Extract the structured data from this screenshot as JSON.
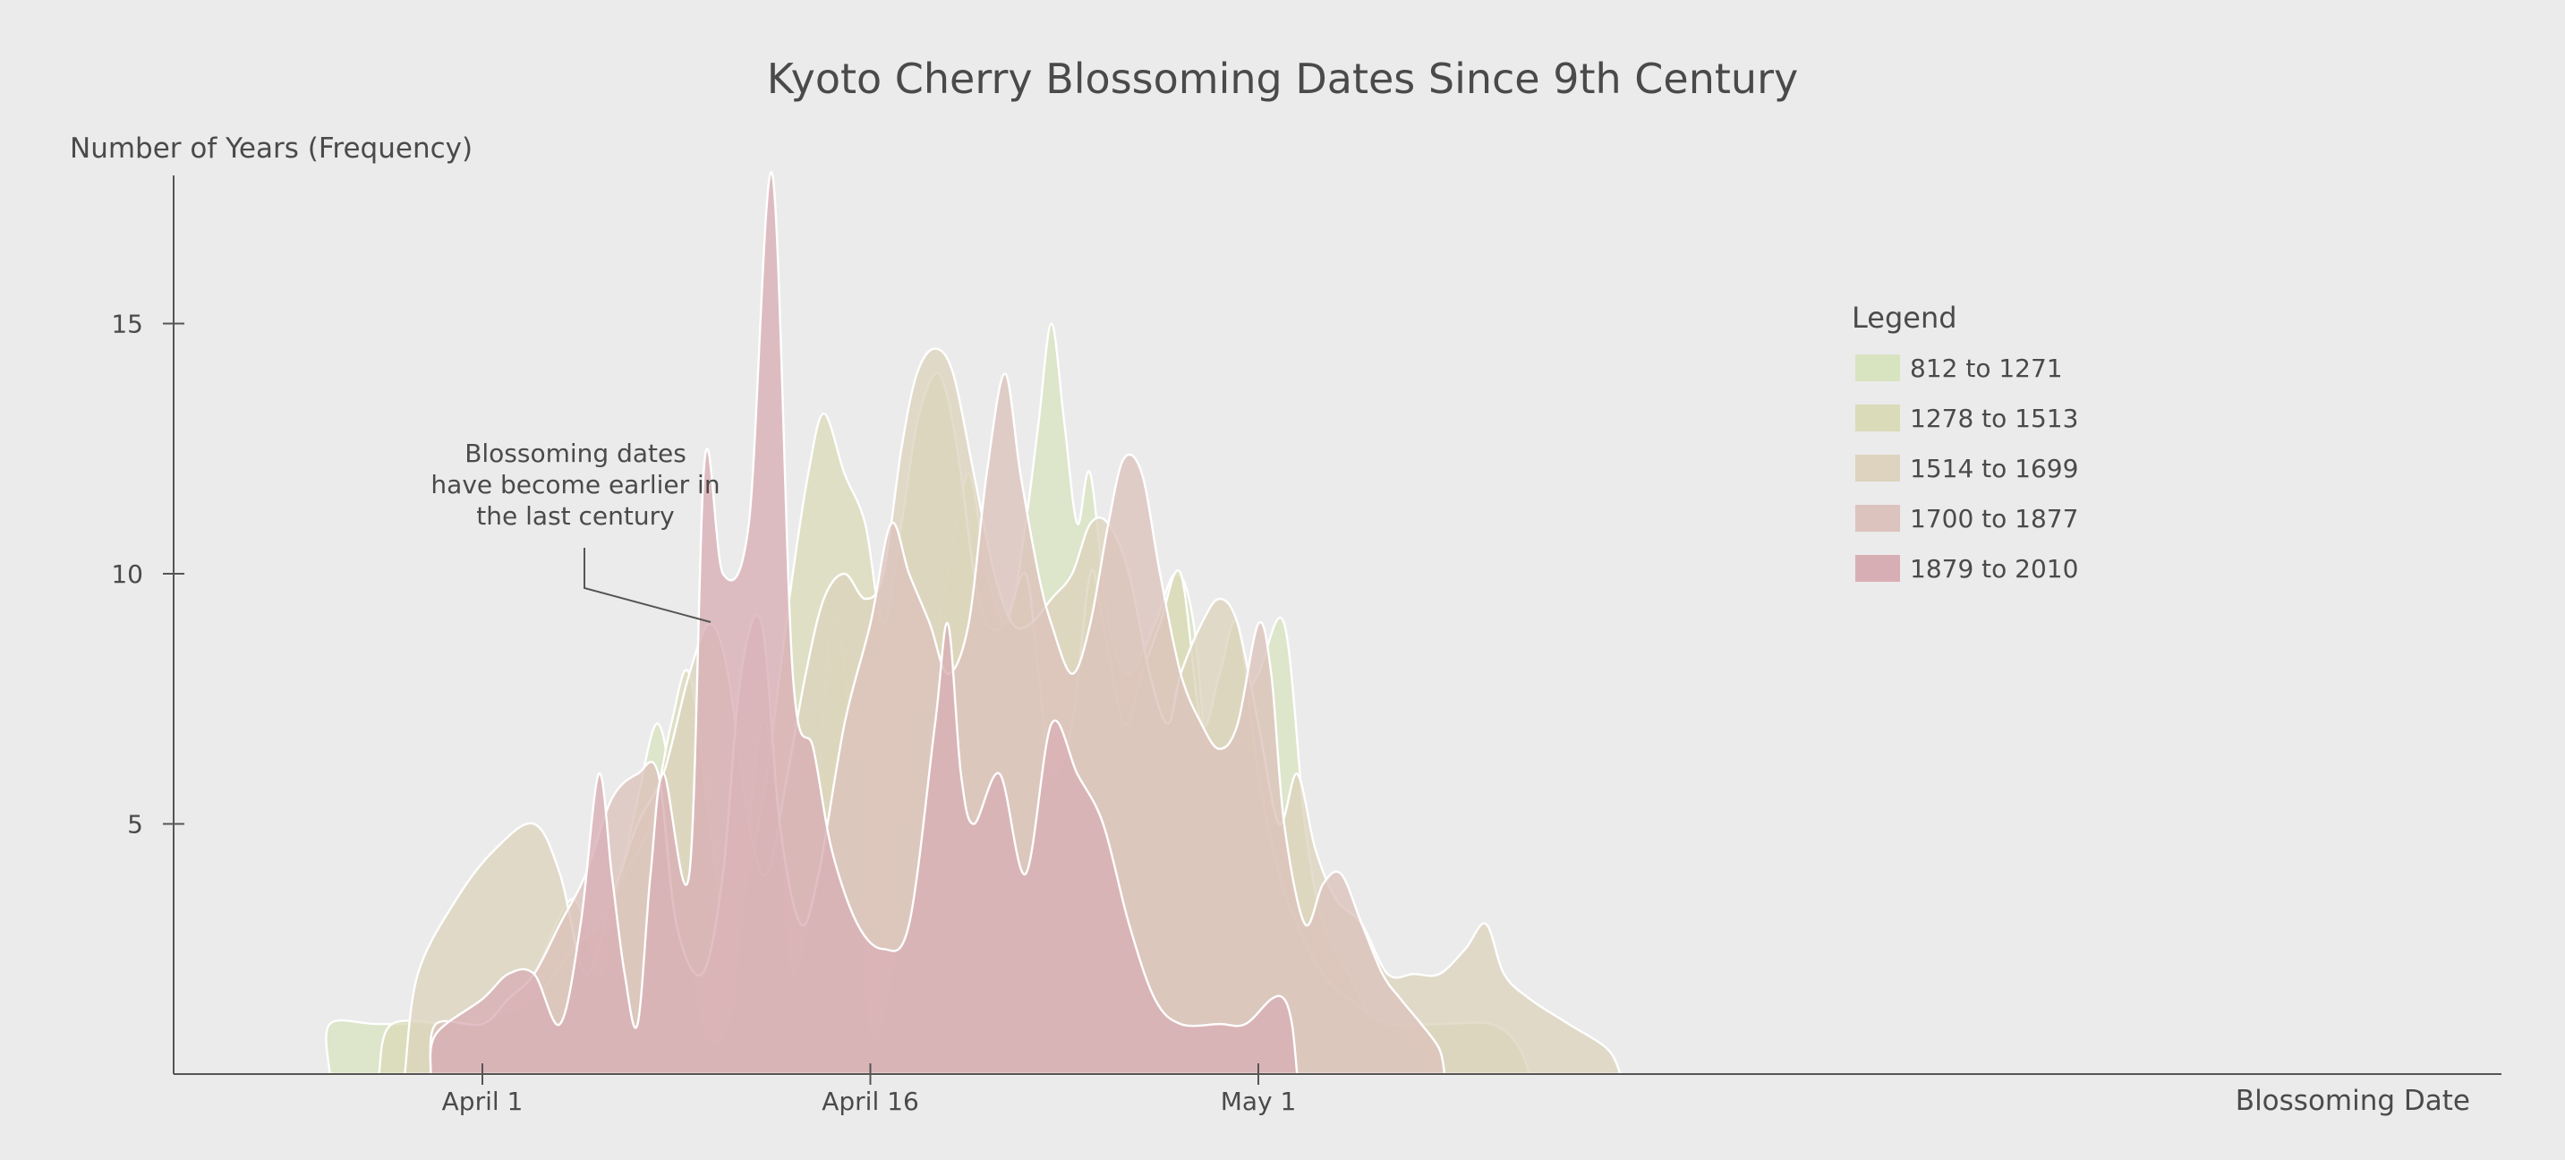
{
  "chart_data": {
    "type": "area",
    "title": "Kyoto Cherry Blossoming Dates Since 9th Century",
    "ylabel": "Number of Years (Frequency)",
    "xlabel": "Blossoming Date",
    "x_unit": "day of April (May 1 = 31)",
    "xlim": [
      -5,
      40
    ],
    "ylim": [
      0,
      18
    ],
    "x_ticks": [
      {
        "value": 1,
        "label": "April 1"
      },
      {
        "value": 16,
        "label": "April 16"
      },
      {
        "value": 31,
        "label": "May 1"
      }
    ],
    "y_ticks": [
      {
        "value": 5,
        "label": "5"
      },
      {
        "value": 10,
        "label": "10"
      },
      {
        "value": 15,
        "label": "15"
      }
    ],
    "legend": {
      "title": "Legend",
      "placement": "top-right"
    },
    "annotation": {
      "lines": [
        "Blossoming dates",
        "have become earlier in",
        "the last century"
      ]
    },
    "series": [
      {
        "name": "812 to 1271",
        "color": "#d8e3c0",
        "points": [
          [
            -4.9,
            0
          ],
          [
            -4.9,
            1
          ],
          [
            -3,
            1
          ],
          [
            0,
            1
          ],
          [
            1,
            1
          ],
          [
            2,
            1.3
          ],
          [
            3,
            2
          ],
          [
            4.5,
            3.5
          ],
          [
            5.5,
            2
          ],
          [
            6,
            3
          ],
          [
            7,
            5.5
          ],
          [
            7.8,
            7
          ],
          [
            8.5,
            5
          ],
          [
            9.5,
            1
          ],
          [
            10.5,
            1
          ],
          [
            11,
            3
          ],
          [
            11.8,
            7
          ],
          [
            12.5,
            5
          ],
          [
            13,
            2
          ],
          [
            13.8,
            4
          ],
          [
            14.5,
            9
          ],
          [
            15.2,
            7
          ],
          [
            16,
            1
          ],
          [
            16.8,
            2
          ],
          [
            17.5,
            5
          ],
          [
            18.3,
            8
          ],
          [
            19,
            10
          ],
          [
            19.8,
            12
          ],
          [
            20.5,
            10
          ],
          [
            21.3,
            9
          ],
          [
            22,
            11
          ],
          [
            22.5,
            13
          ],
          [
            23,
            15
          ],
          [
            23.5,
            13
          ],
          [
            24,
            11
          ],
          [
            24.5,
            12
          ],
          [
            25.2,
            9
          ],
          [
            26,
            8
          ],
          [
            27,
            9
          ],
          [
            27.8,
            10
          ],
          [
            28.5,
            9
          ],
          [
            29.3,
            5
          ],
          [
            30,
            7
          ],
          [
            31,
            8
          ],
          [
            32,
            9
          ],
          [
            32.8,
            5
          ],
          [
            33.5,
            3
          ],
          [
            34.5,
            2
          ],
          [
            35.5,
            1
          ],
          [
            36.5,
            1
          ],
          [
            37,
            0.5
          ],
          [
            37.5,
            0
          ]
        ]
      },
      {
        "name": "1278 to 1513",
        "color": "#dadbb8",
        "points": [
          [
            -3,
            0
          ],
          [
            -2.5,
            1
          ],
          [
            0,
            1
          ],
          [
            1.5,
            1.2
          ],
          [
            3,
            1.5
          ],
          [
            4.5,
            2.5
          ],
          [
            5.5,
            3
          ],
          [
            6.5,
            4
          ],
          [
            7.5,
            5
          ],
          [
            8.3,
            7
          ],
          [
            9,
            8
          ],
          [
            9.8,
            5
          ],
          [
            10.5,
            2.5
          ],
          [
            11.3,
            4
          ],
          [
            12,
            6
          ],
          [
            12.5,
            8
          ],
          [
            13,
            10
          ],
          [
            13.6,
            12
          ],
          [
            14.2,
            13.2
          ],
          [
            15,
            12
          ],
          [
            15.8,
            11
          ],
          [
            16.5,
            9
          ],
          [
            17.2,
            11
          ],
          [
            17.8,
            13
          ],
          [
            18.5,
            14
          ],
          [
            19,
            13.5
          ],
          [
            19.5,
            12
          ],
          [
            20,
            10
          ],
          [
            20.5,
            9
          ],
          [
            21.2,
            9
          ],
          [
            22,
            10
          ],
          [
            22.5,
            8
          ],
          [
            23,
            6
          ],
          [
            23.8,
            7
          ],
          [
            24.5,
            10
          ],
          [
            25,
            9
          ],
          [
            25.8,
            7
          ],
          [
            26.5,
            8
          ],
          [
            27.2,
            9
          ],
          [
            28,
            10
          ],
          [
            28.8,
            7
          ],
          [
            29.5,
            8
          ],
          [
            30.2,
            9
          ],
          [
            31,
            6
          ],
          [
            31.8,
            4
          ],
          [
            32.5,
            3
          ],
          [
            33.5,
            2
          ],
          [
            34.5,
            1.5
          ],
          [
            36,
            1
          ],
          [
            38,
            1
          ],
          [
            40,
            1
          ],
          [
            41,
            0.6
          ],
          [
            41.5,
            0
          ]
        ]
      },
      {
        "name": "1514 to 1699",
        "color": "#ddd3be",
        "points": [
          [
            -2,
            0
          ],
          [
            -1.5,
            2
          ],
          [
            0,
            3.5
          ],
          [
            1.5,
            4.5
          ],
          [
            3,
            5
          ],
          [
            4,
            4
          ],
          [
            5,
            2
          ],
          [
            6,
            3.5
          ],
          [
            7,
            5
          ],
          [
            8,
            6
          ],
          [
            9,
            8
          ],
          [
            9.8,
            9
          ],
          [
            10.5,
            8
          ],
          [
            11.3,
            5
          ],
          [
            12,
            4
          ],
          [
            12.8,
            6
          ],
          [
            13.5,
            8
          ],
          [
            14.2,
            9.5
          ],
          [
            15,
            10
          ],
          [
            15.8,
            9.5
          ],
          [
            16.5,
            10
          ],
          [
            17.2,
            12.5
          ],
          [
            17.8,
            14
          ],
          [
            18.5,
            14.5
          ],
          [
            19.2,
            14
          ],
          [
            20,
            12
          ],
          [
            20.8,
            10
          ],
          [
            21.5,
            9
          ],
          [
            22.2,
            9
          ],
          [
            23,
            9.5
          ],
          [
            23.8,
            10
          ],
          [
            24.5,
            11
          ],
          [
            25.2,
            11
          ],
          [
            26,
            10
          ],
          [
            26.8,
            8
          ],
          [
            27.5,
            7
          ],
          [
            28,
            8
          ],
          [
            28.8,
            9
          ],
          [
            29.5,
            9.5
          ],
          [
            30.2,
            9
          ],
          [
            31,
            7
          ],
          [
            31.8,
            5
          ],
          [
            32.5,
            6
          ],
          [
            33.2,
            4.5
          ],
          [
            34,
            3.5
          ],
          [
            35,
            3
          ],
          [
            36,
            2
          ],
          [
            37,
            2
          ],
          [
            38,
            2
          ],
          [
            39,
            2.5
          ],
          [
            39.8,
            3
          ],
          [
            40.5,
            2
          ],
          [
            41.5,
            1.5
          ],
          [
            43,
            1
          ],
          [
            44.5,
            0.5
          ],
          [
            45,
            0
          ]
        ]
      },
      {
        "name": "1700 to 1877",
        "color": "#dcc3bd",
        "points": [
          [
            -1,
            0
          ],
          [
            -0.8,
            1
          ],
          [
            1,
            1
          ],
          [
            2,
            1.5
          ],
          [
            3,
            2
          ],
          [
            4,
            3
          ],
          [
            5,
            4
          ],
          [
            6,
            5.5
          ],
          [
            7,
            6
          ],
          [
            7.8,
            6
          ],
          [
            8.5,
            3
          ],
          [
            9.5,
            2
          ],
          [
            10.3,
            4
          ],
          [
            11,
            8
          ],
          [
            11.8,
            9
          ],
          [
            12.5,
            5
          ],
          [
            13.3,
            3
          ],
          [
            14,
            4
          ],
          [
            15,
            7
          ],
          [
            16,
            9
          ],
          [
            16.8,
            11
          ],
          [
            17.5,
            10
          ],
          [
            18.3,
            9
          ],
          [
            19,
            8
          ],
          [
            19.8,
            9
          ],
          [
            20.5,
            12
          ],
          [
            21.2,
            14
          ],
          [
            21.8,
            12
          ],
          [
            22.5,
            10
          ],
          [
            23,
            9
          ],
          [
            23.8,
            8
          ],
          [
            24.5,
            9
          ],
          [
            25.2,
            11
          ],
          [
            25.8,
            12.3
          ],
          [
            26.5,
            12
          ],
          [
            27.2,
            10
          ],
          [
            28,
            8
          ],
          [
            28.8,
            7
          ],
          [
            29.5,
            6.5
          ],
          [
            30.2,
            7
          ],
          [
            31,
            9
          ],
          [
            31.5,
            8
          ],
          [
            32,
            5
          ],
          [
            32.8,
            3
          ],
          [
            33.5,
            3.8
          ],
          [
            34.2,
            4
          ],
          [
            35,
            3
          ],
          [
            35.8,
            2
          ],
          [
            36.5,
            1.5
          ],
          [
            37.3,
            1
          ],
          [
            38,
            0.5
          ],
          [
            38.2,
            0
          ]
        ]
      },
      {
        "name": "1879 to 2010",
        "color": "#d8aeb5",
        "points": [
          [
            -1,
            0
          ],
          [
            -0.8,
            0.8
          ],
          [
            1,
            1.5
          ],
          [
            2,
            2
          ],
          [
            3,
            2
          ],
          [
            4,
            1
          ],
          [
            4.8,
            3
          ],
          [
            5.5,
            6
          ],
          [
            6,
            4
          ],
          [
            6.5,
            2
          ],
          [
            7,
            1
          ],
          [
            7.5,
            4
          ],
          [
            8,
            6
          ],
          [
            9,
            4
          ],
          [
            9.6,
            12.3
          ],
          [
            10.3,
            10
          ],
          [
            11.3,
            11
          ],
          [
            12.2,
            18
          ],
          [
            13,
            8
          ],
          [
            13.8,
            6.5
          ],
          [
            14.5,
            4.5
          ],
          [
            15.5,
            3
          ],
          [
            16.5,
            2.5
          ],
          [
            17.5,
            3
          ],
          [
            18.5,
            7
          ],
          [
            19,
            9
          ],
          [
            19.5,
            6
          ],
          [
            20,
            5
          ],
          [
            21,
            6
          ],
          [
            22,
            4
          ],
          [
            23,
            7
          ],
          [
            24,
            6
          ],
          [
            25,
            5
          ],
          [
            26,
            3
          ],
          [
            27,
            1.5
          ],
          [
            28,
            1
          ],
          [
            29.5,
            1
          ],
          [
            30.5,
            1
          ],
          [
            31.5,
            1.5
          ],
          [
            32,
            1.5
          ],
          [
            32.3,
            1
          ],
          [
            32.5,
            0
          ]
        ]
      }
    ]
  }
}
